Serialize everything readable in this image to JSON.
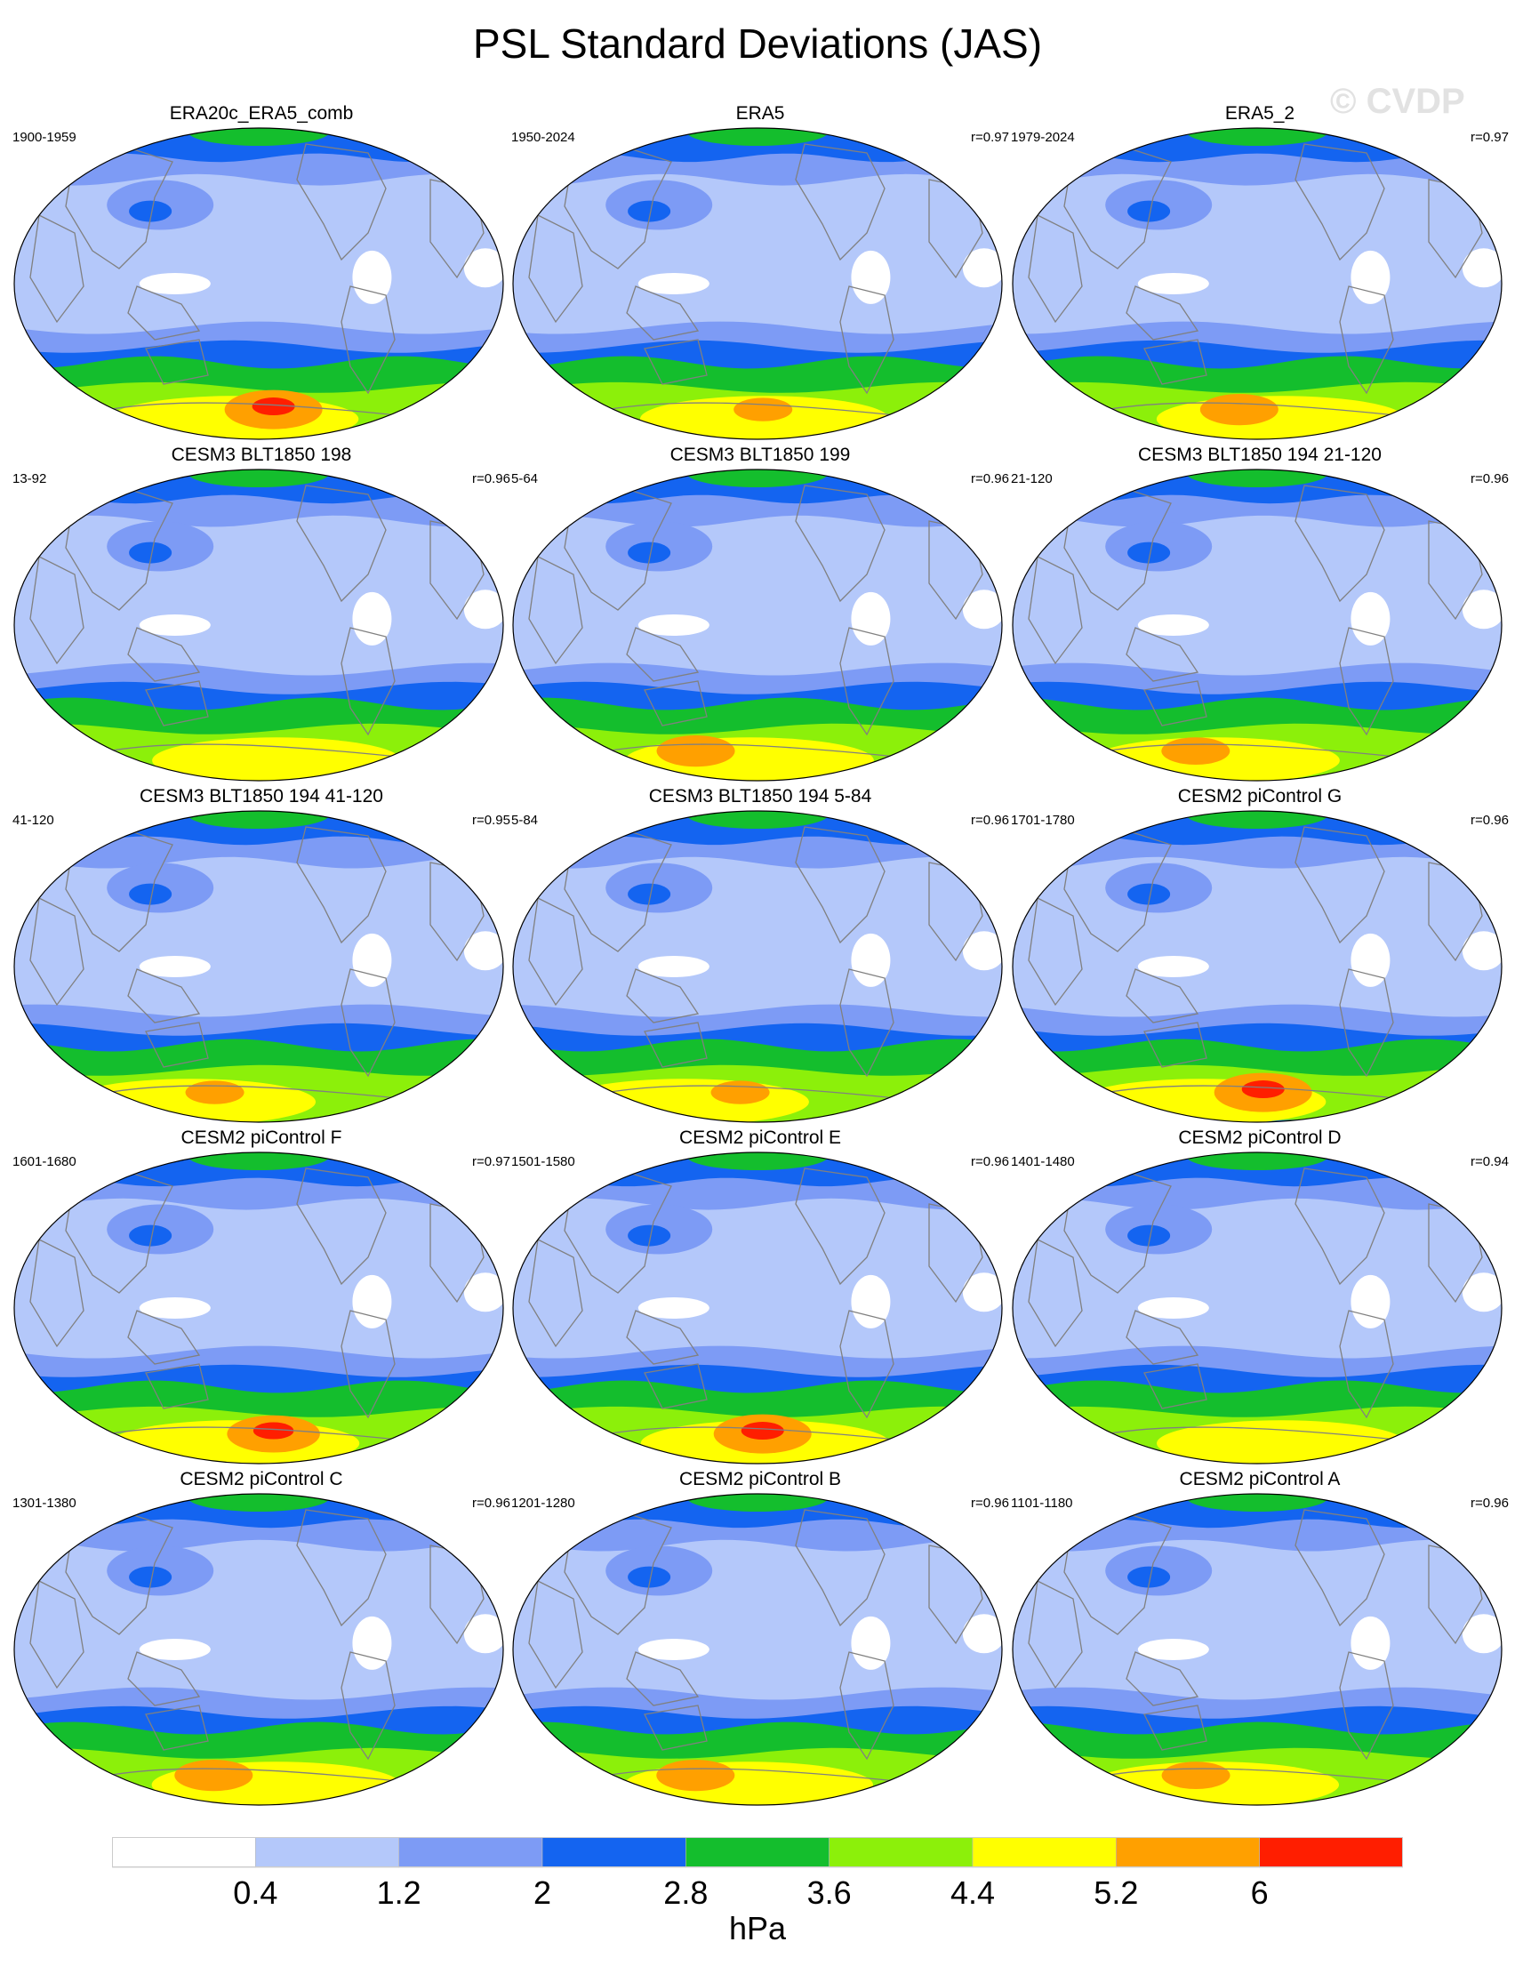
{
  "title": "PSL Standard Deviations (JAS)",
  "watermark": "© CVDP",
  "colorbar": {
    "levels": [
      "0.4",
      "1.2",
      "2",
      "2.8",
      "3.6",
      "4.4",
      "5.2",
      "6"
    ],
    "colors": [
      "#ffffff",
      "#b4c8fa",
      "#7d9bf5",
      "#1464f0",
      "#14be2d",
      "#8cf00a",
      "#ffff00",
      "#ffa000",
      "#ff1e00"
    ],
    "units": "hPa"
  },
  "land_color": "#ffffff",
  "panels": [
    {
      "title": "ERA20c_ERA5_comb",
      "years": "1900-1959",
      "r": "",
      "intensity": 1.15,
      "hotspot": 1.0
    },
    {
      "title": "ERA5",
      "years": "1950-2024",
      "r": "r=0.97",
      "intensity": 0.95,
      "hotspot": 0.6
    },
    {
      "title": "ERA5_2",
      "years": "1979-2024",
      "r": "r=0.97",
      "intensity": 1.0,
      "hotspot": 0.8
    },
    {
      "title": "CESM3 BLT1850 198",
      "years": "13-92",
      "r": "r=0.96",
      "intensity": 0.95,
      "hotspot": 0.5
    },
    {
      "title": "CESM3 BLT1850 199",
      "years": "5-64",
      "r": "r=0.96",
      "intensity": 1.0,
      "hotspot": 0.8
    },
    {
      "title": "CESM3 BLT1850 194 21-120",
      "years": "21-120",
      "r": "r=0.96",
      "intensity": 0.95,
      "hotspot": 0.7
    },
    {
      "title": "CESM3 BLT1850 194 41-120",
      "years": "41-120",
      "r": "r=0.95",
      "intensity": 0.95,
      "hotspot": 0.6
    },
    {
      "title": "CESM3 BLT1850 194 5-84",
      "years": "5-84",
      "r": "r=0.96",
      "intensity": 0.95,
      "hotspot": 0.6
    },
    {
      "title": "CESM2 piControl G",
      "years": "1701-1780",
      "r": "r=0.96",
      "intensity": 1.05,
      "hotspot": 1.0
    },
    {
      "title": "CESM2 piControl F",
      "years": "1601-1680",
      "r": "r=0.97",
      "intensity": 1.05,
      "hotspot": 0.95
    },
    {
      "title": "CESM2 piControl E",
      "years": "1501-1580",
      "r": "r=0.96",
      "intensity": 1.05,
      "hotspot": 1.0
    },
    {
      "title": "CESM2 piControl D",
      "years": "1401-1480",
      "r": "r=0.94",
      "intensity": 0.9,
      "hotspot": 0.4
    },
    {
      "title": "CESM2 piControl C",
      "years": "1301-1380",
      "r": "r=0.96",
      "intensity": 1.0,
      "hotspot": 0.8
    },
    {
      "title": "CESM2 piControl B",
      "years": "1201-1280",
      "r": "r=0.96",
      "intensity": 1.0,
      "hotspot": 0.8
    },
    {
      "title": "CESM2 piControl A",
      "years": "1101-1180",
      "r": "r=0.96",
      "intensity": 0.95,
      "hotspot": 0.7
    }
  ]
}
